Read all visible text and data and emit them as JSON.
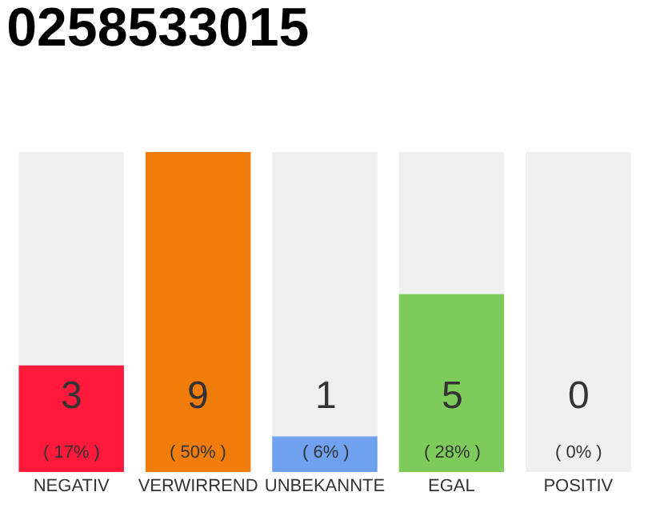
{
  "chart_data": {
    "type": "bar",
    "title": "0258533015",
    "categories": [
      "NEGATIV",
      "VERWIRREND",
      "UNBEKANNTE",
      "EGAL",
      "POSITIV"
    ],
    "values": [
      3,
      9,
      1,
      5,
      0
    ],
    "colors": [
      "#ff1a3c",
      "#f07d0a",
      "#6fa1ef",
      "#7dcb5a",
      "#d0d0d0"
    ],
    "value_labels": [
      "3\n( 17% )",
      "9\n( 50% )",
      "1\n( 6% )",
      "5\n( 28% )",
      "0\n( 0% )"
    ],
    "bands": [
      {
        "axis": "x",
        "from": "NEGATIV",
        "to": "NEGATIV",
        "color": "#efefef"
      },
      {
        "axis": "x",
        "from": "UNBEKANNTE",
        "to": "UNBEKANNTE",
        "color": "#efefef"
      },
      {
        "axis": "x",
        "from": "EGAL",
        "to": "EGAL",
        "color": "#efefef"
      },
      {
        "axis": "x",
        "from": "POSITIV",
        "to": "POSITIV",
        "color": "#efefef"
      }
    ],
    "ylim": [
      0,
      9
    ],
    "tick_labels": "x",
    "grid": false,
    "legend": false
  }
}
